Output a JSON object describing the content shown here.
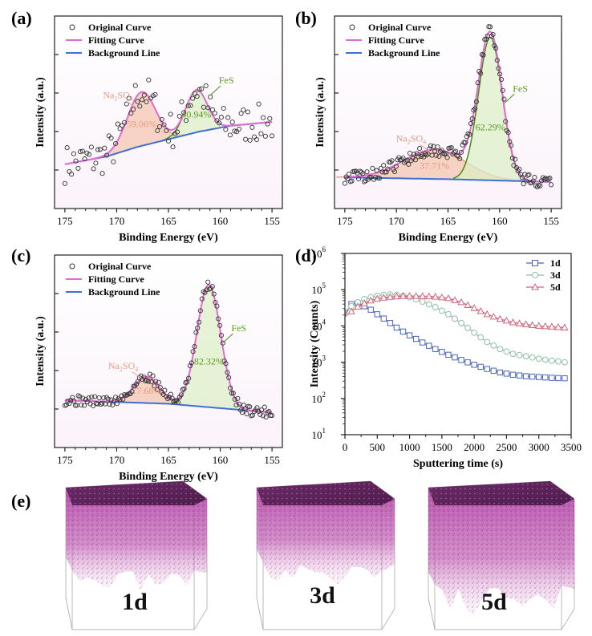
{
  "figure": {
    "panel_labels": [
      "(a)",
      "(b)",
      "(c)",
      "(d)",
      "(e)"
    ]
  },
  "colors": {
    "original": "#333333",
    "fitting": "#e26bd3",
    "background": "#3e6fd4",
    "na2so4_fill": "#f4c3ad",
    "na2so4_line": "#e6a08f",
    "fes_fill": "#dcefc5",
    "fes_line": "#4a8a12",
    "series_1d": "#4a64b8",
    "series_3d": "#8fbfa4",
    "series_5d": "#d0647a",
    "cube": "#b44aa8"
  },
  "chart_data": [
    {
      "panel": "(a)",
      "type": "scatter",
      "title": "",
      "xlabel": "Binding Energy (eV)",
      "ylabel": "Intensity (a.u.)",
      "xlim": [
        176,
        154
      ],
      "xticks": [
        175,
        170,
        165,
        160,
        155
      ],
      "grid": false,
      "legend": {
        "position": "top-left",
        "entries": [
          "Original Curve",
          "Fitting Curve",
          "Background Line"
        ]
      },
      "series": [
        {
          "name": "Original Curve",
          "kind": "points"
        },
        {
          "name": "Fitting Curve",
          "kind": "line"
        },
        {
          "name": "Background Line",
          "kind": "line"
        }
      ],
      "background": {
        "x": [
          175,
          171,
          168,
          165,
          162,
          159,
          155
        ],
        "y": [
          0.58,
          0.62,
          0.67,
          0.71,
          0.75,
          0.78,
          0.8
        ]
      },
      "peaks": [
        {
          "name": "Na2SO4",
          "label_main": "Na",
          "label_sub1": "2",
          "label_mid": "SO",
          "label_sub2": "4",
          "area_pct": "59.06%",
          "center": 167.6,
          "sigma": 1.35,
          "height": 0.28
        },
        {
          "name": "FeS",
          "label": "FeS",
          "area_pct": "40.94%",
          "center": 162.3,
          "sigma": 1.05,
          "height": 0.22
        }
      ],
      "noise": 0.1,
      "n_points": 95,
      "ylim": [
        0.35,
        1.35
      ]
    },
    {
      "panel": "(b)",
      "type": "scatter",
      "title": "",
      "xlabel": "Binding Energy (eV)",
      "ylabel": "Intensity (a.u.)",
      "xlim": [
        176,
        154
      ],
      "xticks": [
        175,
        170,
        165,
        160,
        155
      ],
      "grid": false,
      "legend": {
        "position": "top-left",
        "entries": [
          "Original Curve",
          "Fitting Curve",
          "Background Line"
        ]
      },
      "series": [
        {
          "name": "Original Curve",
          "kind": "points"
        },
        {
          "name": "Fitting Curve",
          "kind": "line"
        },
        {
          "name": "Background Line",
          "kind": "line"
        }
      ],
      "background": {
        "x": [
          175,
          165,
          155
        ],
        "y": [
          0.12,
          0.11,
          0.095
        ]
      },
      "peaks": [
        {
          "name": "Na2SO4",
          "label_main": "Na",
          "label_sub1": "2",
          "label_mid": "SO",
          "label_sub2": "4",
          "area_pct": "37.71%",
          "center": 166.3,
          "sigma": 3.0,
          "height": 0.16
        },
        {
          "name": "FeS",
          "label": "FeS",
          "area_pct": "62.29%",
          "center": 160.9,
          "sigma": 1.15,
          "height": 0.78
        }
      ],
      "noise": 0.035,
      "n_points": 150,
      "ylim": [
        -0.05,
        1.0
      ]
    },
    {
      "panel": "(c)",
      "type": "scatter",
      "title": "",
      "xlabel": "Binding Energy (eV)",
      "ylabel": "Intensity (a.u.)",
      "xlim": [
        176,
        154
      ],
      "xticks": [
        175,
        170,
        165,
        160,
        155
      ],
      "grid": false,
      "legend": {
        "position": "top-left",
        "entries": [
          "Original Curve",
          "Fitting Curve",
          "Background Line"
        ]
      },
      "series": [
        {
          "name": "Original Curve",
          "kind": "points"
        },
        {
          "name": "Fitting Curve",
          "kind": "line"
        },
        {
          "name": "Background Line",
          "kind": "line"
        }
      ],
      "background": {
        "x": [
          175,
          165,
          155
        ],
        "y": [
          0.07,
          0.05,
          0.0
        ]
      },
      "peaks": [
        {
          "name": "Na2SO4",
          "label_main": "Na",
          "label_sub1": "2",
          "label_mid": "SO",
          "label_sub2": "4",
          "area_pct": "17.68%",
          "center": 167.1,
          "sigma": 1.25,
          "height": 0.15
        },
        {
          "name": "FeS",
          "label": "FeS",
          "area_pct": "82.32%",
          "center": 161.1,
          "sigma": 1.15,
          "height": 0.7
        }
      ],
      "noise": 0.03,
      "n_points": 140,
      "ylim": [
        -0.2,
        0.9
      ]
    },
    {
      "panel": "(d)",
      "type": "line",
      "title": "",
      "xlabel": "Sputtering time (s)",
      "ylabel": "Intensity (Counts)",
      "xlim": [
        0,
        3500
      ],
      "xticks": [
        0,
        500,
        1000,
        1500,
        2000,
        2500,
        3000,
        3500
      ],
      "ylim_log10": [
        1,
        6
      ],
      "yticks": [
        {
          "base": "10",
          "exp": "1"
        },
        {
          "base": "10",
          "exp": "2"
        },
        {
          "base": "10",
          "exp": "3"
        },
        {
          "base": "10",
          "exp": "4"
        },
        {
          "base": "10",
          "exp": "5"
        },
        {
          "base": "10",
          "exp": "6"
        }
      ],
      "yscale": "log",
      "grid": false,
      "legend": {
        "position": "top-right",
        "entries": [
          "1d",
          "3d",
          "5d"
        ]
      },
      "x": [
        0,
        100,
        200,
        300,
        400,
        500,
        600,
        700,
        800,
        900,
        1000,
        1200,
        1400,
        1600,
        1800,
        2000,
        2200,
        2400,
        2600,
        2800,
        3000,
        3200,
        3400
      ],
      "series": [
        {
          "name": "1d",
          "marker": "square",
          "values": [
            20000,
            40000,
            42000,
            35000,
            28000,
            21000,
            16000,
            12000,
            9000,
            7000,
            5500,
            3500,
            2300,
            1600,
            1150,
            850,
            650,
            520,
            450,
            410,
            390,
            370,
            360
          ]
        },
        {
          "name": "3d",
          "marker": "circle",
          "values": [
            25000,
            35000,
            45000,
            55000,
            62000,
            68000,
            72000,
            74000,
            72000,
            68000,
            62000,
            47000,
            33000,
            21000,
            12000,
            6500,
            3600,
            2300,
            1700,
            1450,
            1250,
            1100,
            1000
          ]
        },
        {
          "name": "5d",
          "marker": "triangle",
          "values": [
            18000,
            25000,
            34000,
            42000,
            50000,
            56000,
            60000,
            63000,
            65000,
            66500,
            67000,
            66500,
            64000,
            58000,
            45000,
            31000,
            21000,
            15500,
            12500,
            11000,
            10000,
            9500,
            9000
          ]
        }
      ]
    }
  ],
  "cubes": [
    {
      "label": "1d"
    },
    {
      "label": "3d"
    },
    {
      "label": "5d"
    }
  ]
}
